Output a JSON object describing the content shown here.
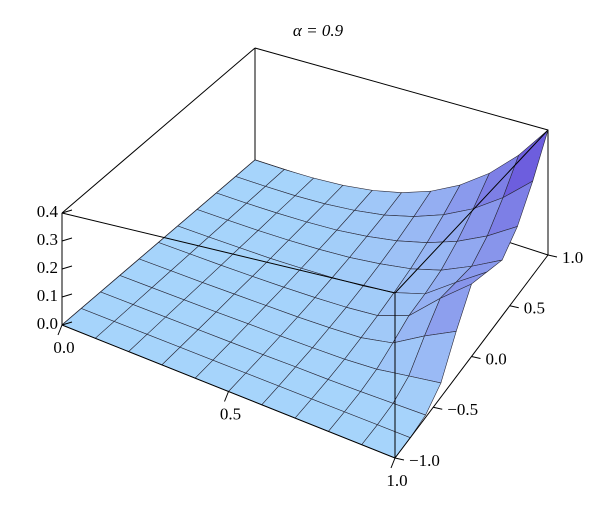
{
  "chart_data": {
    "type": "surface3d",
    "title": "α = 0.9",
    "x": [
      0,
      0.1,
      0.2,
      0.3,
      0.4,
      0.5,
      0.6,
      0.7,
      0.8,
      0.9,
      1
    ],
    "y": [
      -1,
      -0.8,
      -0.6,
      -0.4,
      -0.2,
      0,
      0.2,
      0.4,
      0.6,
      0.8,
      1
    ],
    "z": [
      [
        0,
        0,
        0,
        0,
        0,
        0,
        0,
        0,
        0,
        0,
        0
      ],
      [
        0,
        0,
        0,
        0,
        0,
        0,
        0,
        0,
        0,
        0,
        0
      ],
      [
        0,
        0,
        0,
        0,
        0,
        0,
        0.001,
        0.001,
        0.002,
        0.002,
        0.003
      ],
      [
        0,
        0,
        0,
        0,
        0.001,
        0.001,
        0.002,
        0.004,
        0.006,
        0.008,
        0.011
      ],
      [
        0,
        0,
        0,
        0.001,
        0.002,
        0.003,
        0.006,
        0.009,
        0.013,
        0.019,
        0.026
      ],
      [
        0,
        0,
        0,
        0.001,
        0.003,
        0.006,
        0.011,
        0.017,
        0.026,
        0.036,
        0.05
      ],
      [
        0,
        0,
        0.001,
        0.002,
        0.006,
        0.011,
        0.019,
        0.03,
        0.044,
        0.063,
        0.086
      ],
      [
        0,
        0,
        0.001,
        0.004,
        0.011,
        0.02,
        0.032,
        0.047,
        0.07,
        0.1,
        0.137
      ],
      [
        0,
        0,
        0.002,
        0.01,
        0.029,
        0.052,
        0.06,
        0.074,
        0.105,
        0.149,
        0.205
      ],
      [
        0,
        0,
        0.004,
        0.024,
        0.08,
        0.132,
        0.124,
        0.116,
        0.151,
        0.213,
        0.292
      ],
      [
        0,
        0,
        0.006,
        0.037,
        0.122,
        0.2,
        0.182,
        0.163,
        0.208,
        0.292,
        0.4
      ]
    ],
    "xlim": [
      0,
      1
    ],
    "ylim": [
      -1,
      1
    ],
    "zlim": [
      0,
      0.4
    ],
    "xticks": [
      {
        "value": 0,
        "label": "0.0"
      },
      0.5,
      {
        "value": 1,
        "label": "1.0"
      }
    ],
    "yticks": [
      {
        "value": -1,
        "label": "−1.0"
      },
      {
        "value": -0.5,
        "label": "−0.5"
      },
      {
        "value": 0,
        "label": "0.0"
      },
      0.5,
      {
        "value": 1,
        "label": "1.0"
      }
    ],
    "zticks": [
      {
        "value": 0,
        "label": "0.0"
      },
      0.1,
      0.2,
      0.3,
      0.4
    ],
    "colormap": [
      "#a6d4fb",
      "#5a36d4"
    ]
  }
}
